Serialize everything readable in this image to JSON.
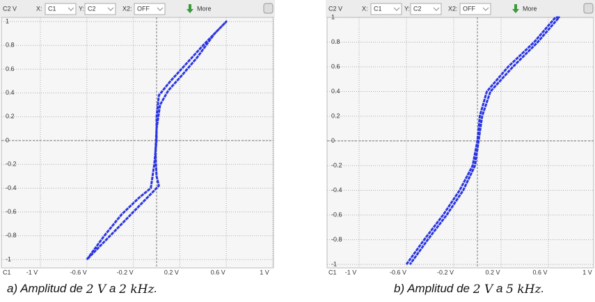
{
  "chart_data": [
    {
      "type": "line",
      "y_axis_label": "C2 V",
      "x_axis_label": "C1",
      "controls": {
        "x_label": "X:",
        "x_value": "C1",
        "y_label": "Y:",
        "y_value": "C2",
        "x2_label": "X2:",
        "x2_value": "OFF",
        "more": "More"
      },
      "x": [
        -0.6,
        -0.45,
        -0.3,
        -0.15,
        -0.05,
        -0.02,
        0.0,
        0.0,
        0.02,
        0.12,
        0.26,
        0.4,
        0.6,
        0.5,
        0.35,
        0.22,
        0.1,
        0.03,
        0.0,
        -0.01,
        0.0,
        0.02,
        -0.08,
        -0.2,
        -0.35,
        -0.5,
        -0.6
      ],
      "series": [
        {
          "color": "#2a35e0",
          "values": [
            -1,
            -0.8,
            -0.62,
            -0.48,
            -0.4,
            -0.2,
            0.0,
            0.2,
            0.38,
            0.5,
            0.65,
            0.8,
            1,
            0.9,
            0.7,
            0.55,
            0.42,
            0.3,
            0.1,
            -0.1,
            -0.3,
            -0.38,
            -0.48,
            -0.6,
            -0.75,
            -0.9,
            -1
          ]
        }
      ],
      "xlim": [
        -1,
        1
      ],
      "ylim": [
        -1,
        1
      ],
      "xticks": [
        {
          "value": -1,
          "label": "-1 V"
        },
        {
          "value": -0.6,
          "label": "-0.6 V"
        },
        {
          "value": -0.2,
          "label": "-0.2 V"
        },
        {
          "value": 0.2,
          "label": "0.2 V"
        },
        {
          "value": 0.6,
          "label": "0.6 V"
        },
        {
          "value": 1,
          "label": "1 V"
        }
      ],
      "yticks": [
        1,
        0.8,
        0.6,
        0.4,
        0.2,
        0,
        -0.2,
        -0.4,
        -0.6,
        -0.8,
        -1
      ],
      "grid": true,
      "caption": [
        "a) Amplitud de ",
        "2 V",
        " a ",
        "2 kHz",
        "."
      ]
    },
    {
      "type": "line",
      "y_axis_label": "C2 V",
      "x_axis_label": "C1",
      "controls": {
        "x_label": "X:",
        "x_value": "C1",
        "y_label": "Y:",
        "y_value": "C2",
        "x2_label": "X2:",
        "x2_value": "OFF",
        "more": "More"
      },
      "x": [
        -0.6,
        -0.45,
        -0.29,
        -0.15,
        -0.04,
        0.0,
        0.02,
        0.08,
        0.26,
        0.48,
        0.66,
        0.69,
        0.51,
        0.3,
        0.11,
        0.04,
        0.01,
        -0.02,
        -0.12,
        -0.26,
        -0.42,
        -0.57
      ],
      "series": [
        {
          "color": "#2a35e0",
          "values": [
            -1,
            -0.8,
            -0.6,
            -0.4,
            -0.2,
            0.0,
            0.2,
            0.4,
            0.6,
            0.8,
            1,
            1,
            0.8,
            0.6,
            0.4,
            0.2,
            0.0,
            -0.2,
            -0.4,
            -0.6,
            -0.8,
            -1
          ]
        }
      ],
      "xlim": [
        -1,
        1
      ],
      "ylim": [
        -1,
        1
      ],
      "xticks": [
        {
          "value": -1,
          "label": "-1 V"
        },
        {
          "value": -0.6,
          "label": "-0.6 V"
        },
        {
          "value": -0.2,
          "label": "-0.2 V"
        },
        {
          "value": 0.2,
          "label": "0.2 V"
        },
        {
          "value": 0.6,
          "label": "0.6 V"
        },
        {
          "value": 1,
          "label": "1 V"
        }
      ],
      "yticks": [
        1,
        0.8,
        0.6,
        0.4,
        0.2,
        0,
        -0.2,
        -0.4,
        -0.6,
        -0.8,
        -1
      ],
      "grid": true,
      "caption": [
        "b) Amplitud de ",
        "2 V",
        " a ",
        "5 kHz",
        "."
      ]
    }
  ]
}
